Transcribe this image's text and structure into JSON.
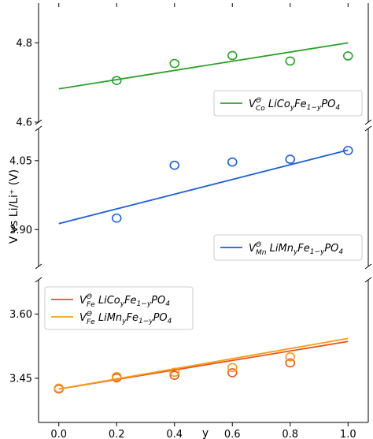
{
  "chart_data": {
    "type": "scatter",
    "xlabel": "y",
    "ylabel": "V vs Li/Li⁺ (V)",
    "x_ticks": [
      "0.0",
      "0.2",
      "0.4",
      "0.6",
      "0.8",
      "1.0"
    ],
    "x": [
      0.0,
      0.2,
      0.4,
      0.6,
      0.8,
      1.0
    ],
    "xlim": [
      -0.07,
      1.07
    ],
    "panels": [
      {
        "ylim": [
          4.6,
          4.9
        ],
        "y_ticks": [
          {
            "value": 4.6,
            "label": "4.6"
          },
          {
            "value": 4.8,
            "label": "4.8"
          }
        ],
        "legend_position": "lower right",
        "series": [
          {
            "color": "#2ca02c",
            "legend": {
              "V": "V",
              "sup": "Θ",
              "sub": "Co",
              "formula": [
                " LiCo",
                "y",
                "Fe",
                "1−y",
                "PO",
                "4"
              ]
            },
            "points": [
              {
                "x": 0.2,
                "y": 4.705
              },
              {
                "x": 0.4,
                "y": 4.748
              },
              {
                "x": 0.6,
                "y": 4.768
              },
              {
                "x": 0.8,
                "y": 4.754
              },
              {
                "x": 1.0,
                "y": 4.767
              }
            ],
            "fit": [
              [
                0.0,
                4.684
              ],
              [
                1.0,
                4.8
              ]
            ]
          }
        ]
      },
      {
        "ylim": [
          3.82,
          4.12
        ],
        "y_ticks": [
          {
            "value": 3.9,
            "label": "3.90"
          },
          {
            "value": 4.05,
            "label": "4.05"
          }
        ],
        "legend_position": "lower right",
        "series": [
          {
            "color": "#1f5fd6",
            "legend": {
              "V": "V",
              "sup": "Θ",
              "sub": "Mn",
              "formula": [
                " LiMn",
                "y",
                "Fe",
                "1−y",
                "PO",
                "4"
              ]
            },
            "points": [
              {
                "x": 0.2,
                "y": 3.925
              },
              {
                "x": 0.4,
                "y": 4.04
              },
              {
                "x": 0.6,
                "y": 4.047
              },
              {
                "x": 0.8,
                "y": 4.053
              },
              {
                "x": 1.0,
                "y": 4.072
              }
            ],
            "fit": [
              [
                0.0,
                3.913
              ],
              [
                1.0,
                4.073
              ]
            ]
          }
        ]
      },
      {
        "ylim": [
          3.38,
          3.68
        ],
        "y_ticks": [
          {
            "value": 3.45,
            "label": "3.45"
          },
          {
            "value": 3.6,
            "label": "3.60"
          }
        ],
        "legend_position": "upper left",
        "series": [
          {
            "color": "#e8541c",
            "legend": {
              "V": "V",
              "sup": "Θ",
              "sub": "Fe",
              "formula": [
                " LiCo",
                "y",
                "Fe",
                "1−y",
                "PO",
                "4"
              ]
            },
            "points": [
              {
                "x": 0.0,
                "y": 3.425
              },
              {
                "x": 0.2,
                "y": 3.451
              },
              {
                "x": 0.4,
                "y": 3.457
              },
              {
                "x": 0.6,
                "y": 3.463
              },
              {
                "x": 0.8,
                "y": 3.486
              }
            ],
            "fit": [
              [
                0.0,
                3.425
              ],
              [
                1.0,
                3.536
              ]
            ]
          },
          {
            "color": "#f59d1a",
            "legend": {
              "V": "V",
              "sup": "Θ",
              "sub": "Fe",
              "formula": [
                " LiMn",
                "y",
                "Fe",
                "1−y",
                "PO",
                "4"
              ]
            },
            "points": [
              {
                "x": 0.0,
                "y": 3.427
              },
              {
                "x": 0.2,
                "y": 3.454
              },
              {
                "x": 0.4,
                "y": 3.464
              },
              {
                "x": 0.6,
                "y": 3.475
              },
              {
                "x": 0.8,
                "y": 3.5
              }
            ],
            "fit": [
              [
                0.0,
                3.425
              ],
              [
                1.0,
                3.543
              ]
            ]
          }
        ]
      }
    ]
  }
}
